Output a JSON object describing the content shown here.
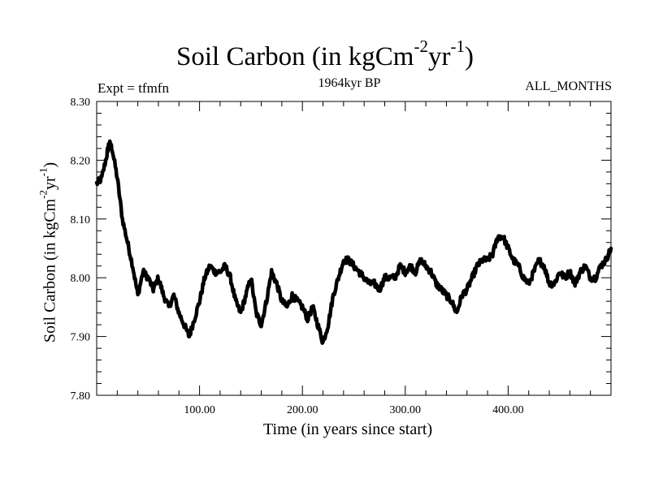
{
  "title": {
    "main": "Soil Carbon (in kgCm",
    "sup1": "-2",
    "mid": "yr",
    "sup2": "-1",
    "end": ")"
  },
  "subtitle": "1964kyr BP",
  "experiment_label": "Expt = tfmfn",
  "months_label": "ALL_MONTHS",
  "chart_data": {
    "type": "line",
    "title": "Soil Carbon (in kgCm-2yr-1)",
    "subtitle": "1964kyr BP",
    "xlabel": "Time (in years since start)",
    "ylabel": "Soil Carbon (in kgCm-2yr-1)",
    "ylabel_parts": {
      "main": "Soil Carbon (in kgCm",
      "sup1": "-2",
      "mid": "yr",
      "sup2": "-1",
      "end": ")"
    },
    "xlim": [
      0,
      500
    ],
    "ylim": [
      7.8,
      8.3
    ],
    "xticks": [
      100,
      200,
      300,
      400
    ],
    "xtick_labels": [
      "100.00",
      "200.00",
      "300.00",
      "400.00"
    ],
    "yticks": [
      7.8,
      7.9,
      8.0,
      8.1,
      8.2,
      8.3
    ],
    "ytick_labels": [
      "7.80",
      "7.90",
      "8.00",
      "8.10",
      "8.20",
      "8.30"
    ],
    "grid": false,
    "series": [
      {
        "name": "Soil Carbon",
        "color": "#000000",
        "x": [
          0,
          5,
          10,
          12,
          15,
          20,
          25,
          30,
          35,
          40,
          45,
          50,
          55,
          60,
          65,
          70,
          75,
          80,
          85,
          90,
          95,
          100,
          105,
          110,
          115,
          120,
          125,
          130,
          135,
          140,
          145,
          150,
          155,
          160,
          165,
          170,
          175,
          180,
          185,
          190,
          195,
          200,
          205,
          210,
          215,
          220,
          225,
          230,
          235,
          240,
          245,
          250,
          255,
          260,
          265,
          270,
          275,
          280,
          285,
          290,
          295,
          300,
          305,
          310,
          315,
          320,
          325,
          330,
          335,
          340,
          345,
          350,
          355,
          360,
          365,
          370,
          375,
          380,
          385,
          390,
          395,
          400,
          405,
          410,
          415,
          420,
          425,
          430,
          435,
          440,
          445,
          450,
          455,
          460,
          465,
          470,
          475,
          480,
          485,
          490,
          495,
          500
        ],
        "y": [
          8.16,
          8.17,
          8.21,
          8.23,
          8.22,
          8.17,
          8.1,
          8.06,
          8.02,
          7.97,
          8.01,
          8.0,
          7.98,
          8.0,
          7.97,
          7.95,
          7.97,
          7.94,
          7.92,
          7.9,
          7.93,
          7.96,
          8.0,
          8.02,
          8.01,
          8.01,
          8.02,
          8.0,
          7.96,
          7.94,
          7.97,
          8.0,
          7.94,
          7.92,
          7.96,
          8.01,
          7.99,
          7.96,
          7.95,
          7.97,
          7.96,
          7.95,
          7.93,
          7.95,
          7.92,
          7.89,
          7.92,
          7.97,
          8.0,
          8.03,
          8.03,
          8.02,
          8.01,
          8.0,
          7.99,
          7.99,
          7.98,
          8.0,
          8.0,
          8.0,
          8.02,
          8.01,
          8.02,
          8.01,
          8.03,
          8.02,
          8.01,
          7.99,
          7.98,
          7.97,
          7.96,
          7.94,
          7.97,
          7.98,
          8.0,
          8.02,
          8.03,
          8.03,
          8.04,
          8.07,
          8.07,
          8.05,
          8.03,
          8.02,
          8.0,
          7.99,
          8.01,
          8.03,
          8.02,
          7.99,
          7.99,
          8.01,
          8.0,
          8.01,
          7.99,
          8.01,
          8.02,
          8.0,
          8.0,
          8.02,
          8.03,
          8.05
        ]
      }
    ]
  }
}
